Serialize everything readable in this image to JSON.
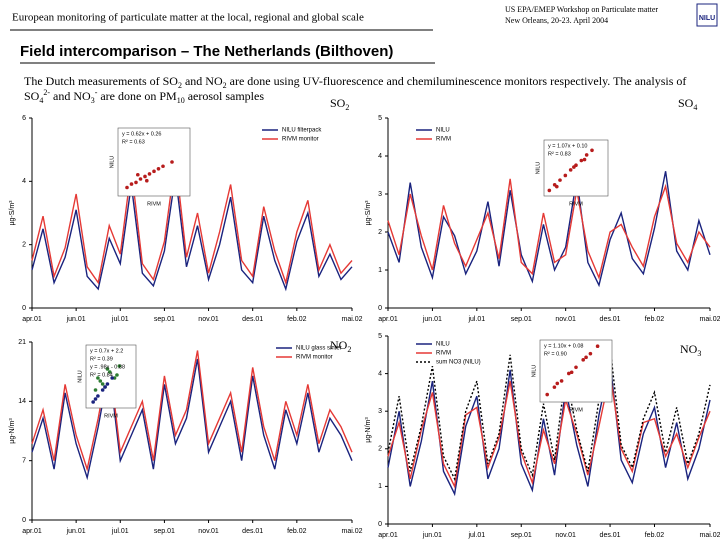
{
  "header": {
    "left": "European monitoring of particulate matter at the local, regional and global scale",
    "right": [
      "US EPA/EMEP Workshop on Particulate matter",
      "New Orleans, 20-23. April 2004"
    ],
    "logo": "NILU"
  },
  "title": "Field intercomparison – The Netherlands (Bilthoven)",
  "description": [
    [
      "The Dutch measurements of SO",
      "2",
      " and NO",
      "2",
      " are done using UV-fluorescence and chemiluminescence monitors respectively. The analysis of"
    ],
    [
      "SO",
      "4",
      "2-",
      " and NO",
      "3",
      "-",
      " are done on PM",
      "10",
      " aerosol samples"
    ]
  ],
  "chart_data": [
    {
      "type": "line",
      "label": [
        "SO",
        "2"
      ],
      "ylabel": "µg-S/m³",
      "xlim": [
        0,
        29
      ],
      "ylim": [
        0,
        6
      ],
      "yticks": [
        0,
        2,
        4,
        6
      ],
      "x": [
        0,
        1,
        2,
        3,
        4,
        5,
        6,
        7,
        8,
        9,
        10,
        11,
        12,
        13,
        14,
        15,
        16,
        17,
        18,
        19,
        20,
        21,
        22,
        23,
        24,
        25,
        26,
        27,
        28,
        29
      ],
      "xticks": [
        {
          "value": 0,
          "label": "apr.01"
        },
        {
          "value": 4,
          "label": "jun.01"
        },
        {
          "value": 8,
          "label": "jul.01"
        },
        {
          "value": 12,
          "label": "sep.01"
        },
        {
          "value": 16,
          "label": "nov.01"
        },
        {
          "value": 20,
          "label": "des.01"
        },
        {
          "value": 24,
          "label": "feb.02"
        },
        {
          "value": 29,
          "label": "mai.02"
        }
      ],
      "series": [
        {
          "name": "NILU filterpack",
          "color": "#1a237e",
          "values": [
            1.2,
            2.5,
            0.8,
            1.6,
            3.1,
            1.0,
            0.6,
            2.2,
            1.4,
            3.9,
            1.1,
            0.7,
            1.8,
            4.2,
            1.3,
            2.6,
            0.9,
            2.0,
            3.5,
            1.2,
            0.8,
            2.9,
            1.5,
            0.6,
            2.1,
            3.0,
            1.0,
            1.7,
            0.9,
            1.3
          ]
        },
        {
          "name": "RIVM monitor",
          "color": "#e53935",
          "values": [
            1.5,
            2.9,
            1.0,
            1.9,
            3.6,
            1.3,
            0.8,
            2.6,
            1.7,
            4.4,
            1.4,
            0.9,
            2.1,
            4.7,
            1.6,
            3.0,
            1.1,
            2.4,
            3.9,
            1.5,
            1.0,
            3.2,
            1.8,
            0.8,
            2.4,
            3.4,
            1.2,
            2.0,
            1.1,
            1.5
          ]
        }
      ],
      "inset": {
        "xlabel": "RIVM",
        "ylabel": "NILU",
        "xlim": [
          0,
          8
        ],
        "ylim": [
          0,
          8
        ],
        "annotations": [
          "y = 0.62x + 0.26",
          "R² = 0.63"
        ],
        "series": [
          {
            "color": "#b71c1c",
            "x": [
              1,
              1.5,
              2,
              2.5,
              3,
              3.5,
              4,
              4.5,
              5,
              6,
              2.2,
              3.2
            ],
            "y": [
              1.0,
              1.4,
              1.6,
              2.0,
              2.3,
              2.6,
              2.9,
              3.2,
              3.5,
              4.0,
              2.5,
              1.8
            ]
          }
        ]
      }
    },
    {
      "type": "line",
      "label": [
        "SO",
        "4"
      ],
      "ylabel": "µg-S/m³",
      "xlim": [
        0,
        29
      ],
      "ylim": [
        0,
        5
      ],
      "yticks": [
        0,
        1,
        2,
        3,
        4,
        5
      ],
      "x": [
        0,
        1,
        2,
        3,
        4,
        5,
        6,
        7,
        8,
        9,
        10,
        11,
        12,
        13,
        14,
        15,
        16,
        17,
        18,
        19,
        20,
        21,
        22,
        23,
        24,
        25,
        26,
        27,
        28,
        29
      ],
      "xticks": [
        {
          "value": 0,
          "label": "apr.01"
        },
        {
          "value": 4,
          "label": "jun.01"
        },
        {
          "value": 8,
          "label": "jul.01"
        },
        {
          "value": 12,
          "label": "sep.01"
        },
        {
          "value": 16,
          "label": "nov.01"
        },
        {
          "value": 20,
          "label": "des.01"
        },
        {
          "value": 24,
          "label": "feb.02"
        },
        {
          "value": 29,
          "label": "mai.02"
        }
      ],
      "series": [
        {
          "name": "NILU",
          "color": "#1a237e",
          "values": [
            2.0,
            1.2,
            3.3,
            1.6,
            0.8,
            2.4,
            1.9,
            0.9,
            1.5,
            2.8,
            1.1,
            3.1,
            1.4,
            0.7,
            2.2,
            1.0,
            1.6,
            3.4,
            1.2,
            0.6,
            1.8,
            2.5,
            1.3,
            0.9,
            2.1,
            3.6,
            1.5,
            1.0,
            2.3,
            1.4
          ]
        },
        {
          "name": "RIVM",
          "color": "#e53935",
          "values": [
            2.3,
            1.4,
            3.0,
            1.9,
            1.0,
            2.7,
            1.7,
            1.1,
            1.8,
            2.5,
            1.3,
            3.4,
            1.2,
            0.9,
            2.5,
            1.2,
            1.4,
            3.1,
            1.5,
            0.8,
            2.0,
            2.2,
            1.6,
            1.1,
            2.4,
            3.2,
            1.7,
            1.2,
            2.0,
            1.6
          ]
        }
      ],
      "inset": {
        "xlabel": "RIVM",
        "ylabel": "NILU",
        "xlim": [
          0,
          6
        ],
        "ylim": [
          0,
          6
        ],
        "annotations": [
          "y = 1.07x + 0.10",
          "R² = 0.83"
        ],
        "series": [
          {
            "color": "#b71c1c",
            "x": [
              0.5,
              1,
              1.5,
              2,
              2.5,
              3,
              3.5,
              4,
              4.5,
              1.2,
              2.8,
              3.8
            ],
            "y": [
              0.6,
              1.2,
              1.7,
              2.2,
              2.8,
              3.3,
              3.8,
              4.4,
              4.9,
              1.0,
              3.1,
              3.9
            ]
          }
        ]
      }
    },
    {
      "type": "line",
      "label": [
        "NO",
        "2"
      ],
      "ylabel": "µg-N/m³",
      "xlim": [
        0,
        29
      ],
      "ylim": [
        0,
        21
      ],
      "yticks": [
        0,
        7,
        14,
        21
      ],
      "x": [
        0,
        1,
        2,
        3,
        4,
        5,
        6,
        7,
        8,
        9,
        10,
        11,
        12,
        13,
        14,
        15,
        16,
        17,
        18,
        19,
        20,
        21,
        22,
        23,
        24,
        25,
        26,
        27,
        28,
        29
      ],
      "xticks": [
        {
          "value": 0,
          "label": "apr.01"
        },
        {
          "value": 4,
          "label": "jun.01"
        },
        {
          "value": 8,
          "label": "jul.01"
        },
        {
          "value": 12,
          "label": "sep.01"
        },
        {
          "value": 16,
          "label": "nov.01"
        },
        {
          "value": 20,
          "label": "des.01"
        },
        {
          "value": 24,
          "label": "feb.02"
        },
        {
          "value": 29,
          "label": "mai.02"
        }
      ],
      "series": [
        {
          "name": "NILU glass sinter",
          "color": "#1a237e",
          "values": [
            8,
            12,
            6,
            15,
            9,
            5,
            11,
            18,
            7,
            10,
            13,
            6,
            16,
            9,
            12,
            19,
            8,
            11,
            14,
            7,
            17,
            10,
            6,
            13,
            9,
            15,
            8,
            12,
            10,
            7
          ]
        },
        {
          "name": "RIVM monitor",
          "color": "#e53935",
          "values": [
            9,
            13,
            7,
            16,
            10,
            6,
            12,
            19,
            8,
            11,
            14,
            7,
            17,
            10,
            13,
            20,
            9,
            12,
            15,
            8,
            18,
            11,
            7,
            14,
            10,
            16,
            9,
            13,
            11,
            8
          ]
        }
      ],
      "inset": {
        "xlabel": "RIVM",
        "ylabel": "NILU",
        "xlim": [
          0,
          21
        ],
        "ylim": [
          0,
          21
        ],
        "annotations": [
          "y = 0.7x + 2.2",
          "R² = 0.39",
          "y = .98x - 0.88",
          "R² = 0.84"
        ],
        "series": [
          {
            "color": "#2e7d32",
            "x": [
              4,
              6,
              8,
              10,
              12,
              14,
              5,
              9,
              13,
              7
            ],
            "y": [
              6,
              9,
              7,
              12,
              10,
              14,
              10,
              13,
              11,
              8
            ]
          },
          {
            "color": "#1a237e",
            "x": [
              3,
              5,
              7,
              9,
              11,
              4,
              8
            ],
            "y": [
              2,
              4,
              6,
              8,
              10,
              3,
              7
            ]
          }
        ]
      }
    },
    {
      "type": "line",
      "label": [
        "NO",
        "3"
      ],
      "ylabel": "µg-N/m³",
      "xlim": [
        0,
        29
      ],
      "ylim": [
        0,
        5
      ],
      "yticks": [
        0,
        1,
        2,
        3,
        4,
        5
      ],
      "x": [
        0,
        1,
        2,
        3,
        4,
        5,
        6,
        7,
        8,
        9,
        10,
        11,
        12,
        13,
        14,
        15,
        16,
        17,
        18,
        19,
        20,
        21,
        22,
        23,
        24,
        25,
        26,
        27,
        28,
        29
      ],
      "xticks": [
        {
          "value": 0,
          "label": "apr.01"
        },
        {
          "value": 4,
          "label": "jun.01"
        },
        {
          "value": 8,
          "label": "jul.01"
        },
        {
          "value": 12,
          "label": "sep.01"
        },
        {
          "value": 16,
          "label": "nov.01"
        },
        {
          "value": 20,
          "label": "des.01"
        },
        {
          "value": 24,
          "label": "feb.02"
        },
        {
          "value": 29,
          "label": "mai.02"
        }
      ],
      "series": [
        {
          "name": "NILU",
          "color": "#1a237e",
          "values": [
            1.5,
            3.0,
            1.0,
            2.2,
            3.8,
            1.4,
            0.8,
            2.6,
            3.4,
            1.2,
            2.0,
            4.1,
            1.6,
            0.9,
            2.8,
            1.3,
            3.6,
            2.1,
            1.0,
            2.9,
            4.3,
            1.7,
            1.1,
            2.4,
            3.1,
            1.5,
            2.7,
            1.2,
            2.0,
            3.3
          ]
        },
        {
          "name": "RIVM",
          "color": "#e53935",
          "values": [
            1.8,
            2.7,
            1.2,
            2.5,
            3.5,
            1.6,
            1.0,
            2.9,
            3.1,
            1.5,
            2.3,
            3.8,
            1.9,
            1.1,
            2.5,
            1.6,
            3.3,
            2.4,
            1.3,
            2.6,
            4.0,
            2.0,
            1.4,
            2.7,
            2.8,
            1.8,
            2.4,
            1.5,
            2.3,
            3.0
          ]
        },
        {
          "name": "sum NO3 (NILU)",
          "color": "#000000",
          "dashed": true,
          "values": [
            1.9,
            3.4,
            1.4,
            2.6,
            4.2,
            1.8,
            1.2,
            3.0,
            3.8,
            1.6,
            2.4,
            4.5,
            2.0,
            1.3,
            3.2,
            1.7,
            4.0,
            2.5,
            1.4,
            3.3,
            4.7,
            2.1,
            1.5,
            2.8,
            3.5,
            1.9,
            3.1,
            1.6,
            2.4,
            3.7
          ]
        }
      ],
      "inset": {
        "xlabel": "RIVM",
        "ylabel": "NILU",
        "xlim": [
          0,
          5
        ],
        "ylim": [
          0,
          5
        ],
        "annotations": [
          "y = 1.10x + 0.08",
          "R² = 0.90"
        ],
        "series": [
          {
            "color": "#b71c1c",
            "x": [
              0.5,
              1,
              1.5,
              2,
              2.5,
              3,
              3.5,
              4,
              1.2,
              2.2,
              3.2
            ],
            "y": [
              0.6,
              1.2,
              1.7,
              2.3,
              2.8,
              3.4,
              3.9,
              4.5,
              1.5,
              2.4,
              3.6
            ]
          }
        ]
      }
    }
  ]
}
